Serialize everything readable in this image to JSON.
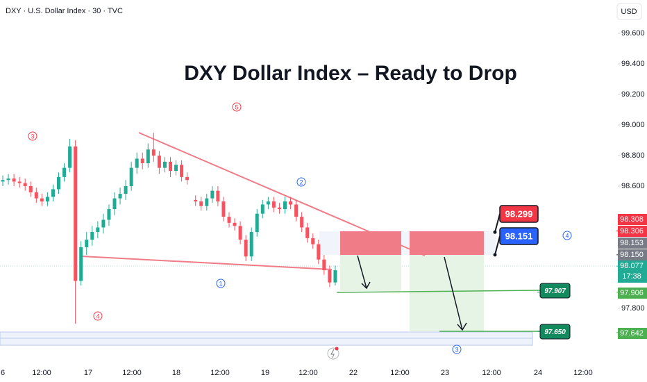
{
  "header": "DXY · U.S. Dollar Index · 30 · TVC",
  "currency": "USD",
  "chart_data": {
    "type": "candlestick",
    "title": "DXY Dollar Index – Ready to Drop",
    "ylim": [
      97.455,
      99.818
    ],
    "yticks": [
      {
        "value": 99.6,
        "label": "99.600"
      },
      {
        "value": 99.4,
        "label": "99.400"
      },
      {
        "value": 99.2,
        "label": "99.200"
      },
      {
        "value": 99.0,
        "label": "99.000"
      },
      {
        "value": 98.8,
        "label": "98.800"
      },
      {
        "value": 98.6,
        "label": "98.600"
      },
      {
        "value": 97.8,
        "label": "97.800"
      }
    ],
    "x_labels": [
      "6",
      "12:00",
      "17",
      "12:00",
      "18",
      "12:00",
      "19",
      "12:00",
      "22",
      "12:00",
      "23",
      "12:00",
      "24",
      "12:00"
    ],
    "up_color": "#22ab94",
    "down_color": "#f7525f",
    "candles": {
      "open": [
        98.63,
        98.64,
        98.65,
        98.63,
        98.62,
        98.6,
        98.56,
        98.52,
        98.5,
        98.53,
        98.58,
        98.66,
        98.72,
        98.86,
        97.98,
        98.2,
        98.25,
        98.3,
        98.33,
        98.38,
        98.45,
        98.52,
        98.55,
        98.6,
        98.72,
        98.78,
        98.75,
        98.84,
        98.8,
        98.72,
        98.76,
        98.7,
        98.74,
        98.66,
        98.51,
        98.5,
        98.47,
        98.52,
        98.57,
        98.5,
        98.4,
        98.36,
        98.34,
        98.25,
        98.14,
        98.3,
        98.42,
        98.48,
        98.5,
        98.46,
        98.45,
        98.5,
        98.48,
        98.4,
        98.33,
        98.26,
        98.22,
        98.12,
        98.05,
        97.97
      ],
      "high": [
        98.67,
        98.68,
        98.68,
        98.66,
        98.65,
        98.63,
        98.59,
        98.55,
        98.56,
        98.61,
        98.69,
        98.75,
        98.91,
        98.9,
        98.24,
        98.3,
        98.34,
        98.37,
        98.42,
        98.48,
        98.56,
        98.59,
        98.64,
        98.76,
        98.82,
        98.82,
        98.88,
        98.95,
        98.83,
        98.79,
        98.79,
        98.77,
        98.77,
        98.69,
        98.54,
        98.53,
        98.55,
        98.6,
        98.6,
        98.53,
        98.43,
        98.39,
        98.37,
        98.28,
        98.33,
        98.45,
        98.51,
        98.53,
        98.53,
        98.49,
        98.53,
        98.53,
        98.51,
        98.43,
        98.36,
        98.29,
        98.25,
        98.15,
        98.08,
        98.08
      ],
      "low": [
        98.6,
        98.61,
        98.6,
        98.59,
        98.57,
        98.53,
        98.49,
        98.47,
        98.47,
        98.5,
        98.55,
        98.63,
        98.69,
        97.7,
        97.95,
        98.15,
        98.21,
        98.26,
        98.29,
        98.34,
        98.41,
        98.48,
        98.51,
        98.57,
        98.68,
        98.71,
        98.72,
        98.76,
        98.68,
        98.69,
        98.66,
        98.67,
        98.63,
        98.61,
        98.47,
        98.44,
        98.44,
        98.49,
        98.47,
        98.37,
        98.33,
        98.31,
        98.22,
        98.11,
        98.11,
        98.27,
        98.39,
        98.45,
        98.43,
        98.42,
        98.42,
        98.45,
        98.37,
        98.3,
        98.23,
        98.19,
        98.09,
        98.02,
        97.94,
        97.95
      ],
      "close": [
        98.64,
        98.65,
        98.63,
        98.62,
        98.6,
        98.56,
        98.52,
        98.5,
        98.53,
        98.58,
        98.66,
        98.72,
        98.86,
        97.98,
        98.2,
        98.25,
        98.3,
        98.33,
        98.38,
        98.45,
        98.52,
        98.55,
        98.6,
        98.72,
        98.78,
        98.75,
        98.84,
        98.8,
        98.72,
        98.76,
        98.7,
        98.74,
        98.66,
        98.64,
        98.5,
        98.47,
        98.52,
        98.57,
        98.5,
        98.4,
        98.36,
        98.34,
        98.25,
        98.14,
        98.3,
        98.42,
        98.48,
        98.5,
        98.46,
        98.45,
        98.5,
        98.48,
        98.4,
        98.33,
        98.26,
        98.22,
        98.12,
        98.05,
        97.97,
        98.05
      ]
    },
    "price_labels": [
      {
        "value": 98.308,
        "label": "98.308",
        "color": "#f23645"
      },
      {
        "value": 98.306,
        "label": "98.306",
        "color": "#f23645"
      },
      {
        "value": 98.153,
        "label": "98.153",
        "color": "#787b86"
      },
      {
        "value": 98.15,
        "label": "98.150",
        "color": "#787b86"
      },
      {
        "value": 98.077,
        "label": "98.077",
        "color": "#22ab94"
      },
      {
        "value": 97.906,
        "label": "97.906",
        "color": "#4caf50"
      },
      {
        "value": 97.642,
        "label": "97.642",
        "color": "#4caf50"
      }
    ],
    "countdown": "17:38",
    "callouts": [
      {
        "value": 98.299,
        "label": "98.299",
        "color": "#f23645"
      },
      {
        "value": 98.151,
        "label": "98.151",
        "color": "#2962ff"
      },
      {
        "value": 97.907,
        "label": "97.907",
        "color": "#138a5e"
      },
      {
        "value": 97.65,
        "label": "97.650",
        "color": "#138a5e"
      }
    ],
    "waves": [
      {
        "label": "5",
        "color": "#f23645"
      },
      {
        "label": "3",
        "color": "#f23645"
      },
      {
        "label": "2",
        "color": "#2962ff"
      },
      {
        "label": "1",
        "color": "#2962ff"
      },
      {
        "label": "4",
        "color": "#f23645"
      },
      {
        "label": "4",
        "color": "#2962ff"
      },
      {
        "label": "3",
        "color": "#2962ff"
      }
    ]
  }
}
